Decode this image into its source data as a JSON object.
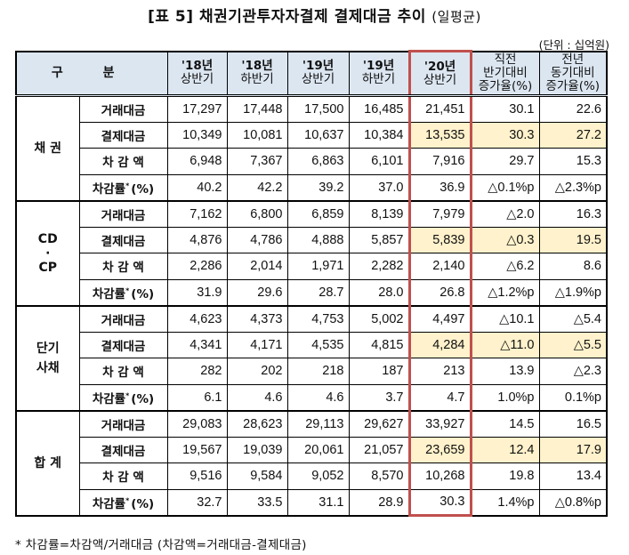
{
  "title": {
    "main": "[표 5] 채권기관투자자결제 결제대금 추이",
    "sub": "(일평균)"
  },
  "unit": "(단위 : 십억원)",
  "header": {
    "category": "구 분",
    "columns": [
      {
        "line1": "'18년",
        "line2": "상반기"
      },
      {
        "line1": "'18년",
        "line2": "하반기"
      },
      {
        "line1": "'19년",
        "line2": "상반기"
      },
      {
        "line1": "'19년",
        "line2": "하반기"
      },
      {
        "line1": "'20년",
        "line2": "상반기"
      },
      {
        "line1": "직전",
        "line2": "반기대비",
        "line3": "증가율(%)"
      },
      {
        "line1": "전년",
        "line2": "동기대비",
        "line3": "증가율(%)"
      }
    ]
  },
  "row_labels": {
    "trade": "거래대금",
    "settle": "결제대금",
    "diff": "차 감 액",
    "rate": "차감률",
    "rate_mark": "*",
    "rate_unit": "(%)"
  },
  "groups": [
    {
      "name": "채 권",
      "rows": [
        [
          "17,297",
          "17,448",
          "17,500",
          "16,485",
          "21,451",
          "30.1",
          "22.6"
        ],
        [
          "10,349",
          "10,081",
          "10,637",
          "10,384",
          "13,535",
          "30.3",
          "27.2"
        ],
        [
          "6,948",
          "7,367",
          "6,863",
          "6,101",
          "7,916",
          "29.7",
          "15.3"
        ],
        [
          "40.2",
          "42.2",
          "39.2",
          "37.0",
          "36.9",
          "△0.1%p",
          "△2.3%p"
        ]
      ]
    },
    {
      "name": "CD\n·\nCP",
      "name_lines": [
        "CD",
        "·",
        "CP"
      ],
      "rows": [
        [
          "7,162",
          "6,800",
          "6,859",
          "8,139",
          "7,979",
          "△2.0",
          "16.3"
        ],
        [
          "4,876",
          "4,786",
          "4,888",
          "5,857",
          "5,839",
          "△0.3",
          "19.5"
        ],
        [
          "2,286",
          "2,014",
          "1,971",
          "2,282",
          "2,140",
          "△6.2",
          "8.6"
        ],
        [
          "31.9",
          "29.6",
          "28.7",
          "28.0",
          "26.8",
          "△1.2%p",
          "△1.9%p"
        ]
      ]
    },
    {
      "name": "단기 사채",
      "name_lines": [
        "단기",
        "사채"
      ],
      "rows": [
        [
          "4,623",
          "4,373",
          "4,753",
          "5,002",
          "4,497",
          "△10.1",
          "△5.4"
        ],
        [
          "4,341",
          "4,171",
          "4,535",
          "4,815",
          "4,284",
          "△11.0",
          "△5.5"
        ],
        [
          "282",
          "202",
          "218",
          "187",
          "213",
          "13.9",
          "△2.3"
        ],
        [
          "6.1",
          "4.6",
          "4.6",
          "3.7",
          "4.7",
          "1.0%p",
          "0.1%p"
        ]
      ]
    },
    {
      "name": "합 계",
      "rows": [
        [
          "29,083",
          "28,623",
          "29,113",
          "29,627",
          "33,927",
          "14.5",
          "16.5"
        ],
        [
          "19,567",
          "19,039",
          "20,061",
          "21,057",
          "23,659",
          "12.4",
          "17.9"
        ],
        [
          "9,516",
          "9,584",
          "9,052",
          "8,570",
          "10,268",
          "19.8",
          "13.4"
        ],
        [
          "32.7",
          "33.5",
          "31.1",
          "28.9",
          "30.3",
          "1.4%p",
          "△0.8%p"
        ]
      ]
    }
  ],
  "footnote": "*  차감률=차감액/거래대금  (차감액=거래대금-결제대금)",
  "colors": {
    "header_bg": "#dce6f1",
    "highlight_bg": "#fff2cc",
    "highlight_box": "#c0504d"
  }
}
